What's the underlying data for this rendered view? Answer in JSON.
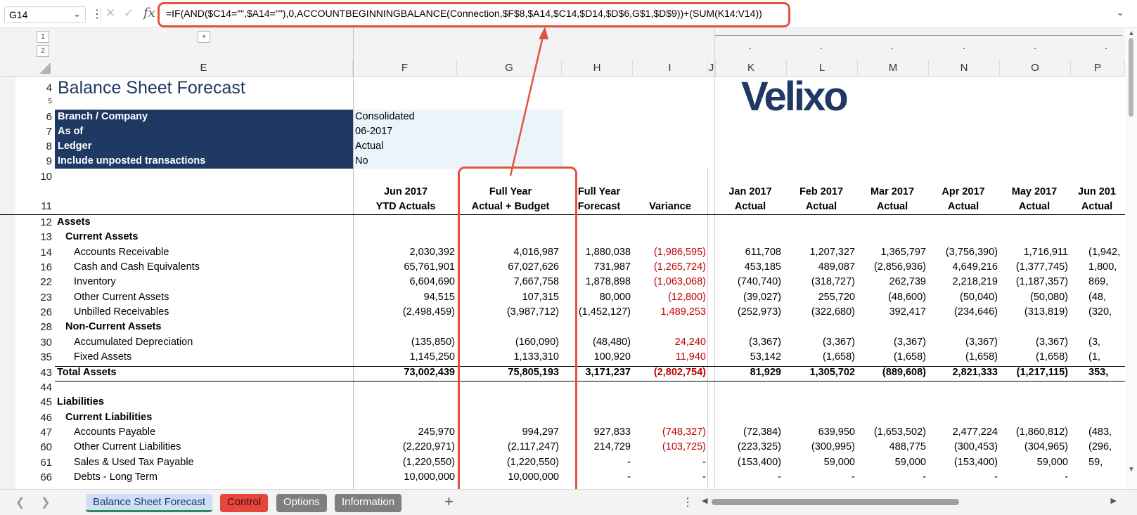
{
  "formula_bar": {
    "name_box": "G14",
    "fx": "fx",
    "formula": "=IF(AND($C14=\"\",$A14=\"\"),0,ACCOUNTBEGINNINGBALANCE(Connection,$F$8,$A14,$C14,$D14,$D$6,G$1,$D$9))+(SUM(K14:V14))"
  },
  "outline": {
    "level1": "1",
    "level2": "2",
    "plus": "+"
  },
  "columns": [
    "E",
    "F",
    "G",
    "H",
    "I",
    "J",
    "K",
    "L",
    "M",
    "N",
    "O",
    "P"
  ],
  "sheet": {
    "title": "Balance Sheet Forecast",
    "logo": "Velixo",
    "params": [
      {
        "row": "6",
        "label": "Branch / Company",
        "value": "Consolidated"
      },
      {
        "row": "7",
        "label": "As of",
        "value": "06-2017"
      },
      {
        "row": "8",
        "label": "Ledger",
        "value": "Actual"
      },
      {
        "row": "9",
        "label": "Include unposted transactions",
        "value": "No"
      }
    ],
    "headers": [
      {
        "l1": "Jun 2017",
        "l2": "YTD Actuals"
      },
      {
        "l1": "Full Year",
        "l2": "Actual + Budget"
      },
      {
        "l1": "Full Year",
        "l2": "Forecast"
      },
      {
        "l1": "",
        "l2": "Variance"
      },
      {
        "l1": "Jan 2017",
        "l2": "Actual"
      },
      {
        "l1": "Feb 2017",
        "l2": "Actual"
      },
      {
        "l1": "Mar 2017",
        "l2": "Actual"
      },
      {
        "l1": "Apr 2017",
        "l2": "Actual"
      },
      {
        "l1": "May 2017",
        "l2": "Actual"
      },
      {
        "l1": "Jun 201",
        "l2": "Actual"
      }
    ],
    "rows": [
      {
        "num": "12",
        "label": "Assets",
        "type": "section",
        "vals": []
      },
      {
        "num": "13",
        "label": "Current Assets",
        "type": "sub",
        "vals": []
      },
      {
        "num": "14",
        "label": "Accounts Receivable",
        "type": "item",
        "vals": [
          "2,030,392",
          "4,016,987",
          "1,880,038",
          "(1,986,595)",
          "611,708",
          "1,207,327",
          "1,365,797",
          "(3,756,390)",
          "1,716,911",
          "(1,942,"
        ]
      },
      {
        "num": "16",
        "label": "Cash and Cash Equivalents",
        "type": "item",
        "vals": [
          "65,761,901",
          "67,027,626",
          "731,987",
          "(1,265,724)",
          "453,185",
          "489,087",
          "(2,856,936)",
          "4,649,216",
          "(1,377,745)",
          "1,800,"
        ]
      },
      {
        "num": "22",
        "label": "Inventory",
        "type": "item",
        "vals": [
          "6,604,690",
          "7,667,758",
          "1,878,898",
          "(1,063,068)",
          "(740,740)",
          "(318,727)",
          "262,739",
          "2,218,219",
          "(1,187,357)",
          "869,"
        ]
      },
      {
        "num": "23",
        "label": "Other Current Assets",
        "type": "item",
        "vals": [
          "94,515",
          "107,315",
          "80,000",
          "(12,800)",
          "(39,027)",
          "255,720",
          "(48,600)",
          "(50,040)",
          "(50,080)",
          "(48,"
        ]
      },
      {
        "num": "26",
        "label": "Unbilled Receivables",
        "type": "item",
        "vals": [
          "(2,498,459)",
          "(3,987,712)",
          "(1,452,127)",
          "1,489,253",
          "(252,973)",
          "(322,680)",
          "392,417",
          "(234,646)",
          "(313,819)",
          "(320,"
        ]
      },
      {
        "num": "28",
        "label": "Non-Current Assets",
        "type": "sub",
        "vals": []
      },
      {
        "num": "30",
        "label": "Accumulated Depreciation",
        "type": "item",
        "vals": [
          "(135,850)",
          "(160,090)",
          "(48,480)",
          "24,240",
          "(3,367)",
          "(3,367)",
          "(3,367)",
          "(3,367)",
          "(3,367)",
          "(3,"
        ]
      },
      {
        "num": "35",
        "label": "Fixed Assets",
        "type": "item",
        "vals": [
          "1,145,250",
          "1,133,310",
          "100,920",
          "11,940",
          "53,142",
          "(1,658)",
          "(1,658)",
          "(1,658)",
          "(1,658)",
          "(1,"
        ]
      },
      {
        "num": "43",
        "label": "Total Assets",
        "type": "total",
        "vals": [
          "73,002,439",
          "75,805,193",
          "3,171,237",
          "(2,802,754)",
          "81,929",
          "1,305,702",
          "(889,608)",
          "2,821,333",
          "(1,217,115)",
          "353,"
        ]
      },
      {
        "num": "44",
        "label": "",
        "type": "blank",
        "vals": []
      },
      {
        "num": "45",
        "label": "Liabilities",
        "type": "section",
        "vals": []
      },
      {
        "num": "46",
        "label": "Current Liabilities",
        "type": "sub",
        "vals": []
      },
      {
        "num": "47",
        "label": "Accounts Payable",
        "type": "item",
        "vals": [
          "245,970",
          "994,297",
          "927,833",
          "(748,327)",
          "(72,384)",
          "639,950",
          "(1,653,502)",
          "2,477,224",
          "(1,860,812)",
          "(483,"
        ]
      },
      {
        "num": "60",
        "label": "Other Current Liabilities",
        "type": "item",
        "vals": [
          "(2,220,971)",
          "(2,117,247)",
          "214,729",
          "(103,725)",
          "(223,325)",
          "(300,995)",
          "488,775",
          "(300,453)",
          "(304,965)",
          "(296,"
        ]
      },
      {
        "num": "61",
        "label": "Sales & Used Tax Payable",
        "type": "item",
        "vals": [
          "(1,220,550)",
          "(1,220,550)",
          "-",
          "-",
          "(153,400)",
          "59,000",
          "59,000",
          "(153,400)",
          "59,000",
          "59,"
        ]
      },
      {
        "num": "66",
        "label": "Debts - Long Term",
        "type": "item",
        "vals": [
          "10,000,000",
          "10,000,000",
          "-",
          "-",
          "-",
          "-",
          "-",
          "-",
          "-",
          ""
        ]
      }
    ]
  },
  "tabs": {
    "active": "Balance Sheet Forecast",
    "control": "Control",
    "options": "Options",
    "information": "Information",
    "add": "+"
  },
  "colors": {
    "navy": "#203864",
    "highlight": "#e0533f",
    "negative": "#c00000"
  }
}
